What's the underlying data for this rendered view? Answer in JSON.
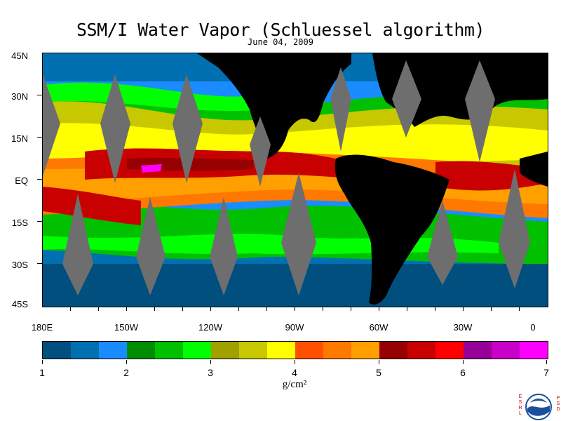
{
  "header": {
    "title": "SSM/I Water Vapor (Schluessel algorithm)",
    "date": "June 04, 2009"
  },
  "map": {
    "lat_labels": [
      "45N",
      "30N",
      "15N",
      "EQ",
      "15S",
      "30S",
      "45S"
    ],
    "lon_labels": [
      "180E",
      "150W",
      "120W",
      "90W",
      "60W",
      "30W",
      "0"
    ]
  },
  "colorbar": {
    "colors": [
      "#004f7f",
      "#0070b0",
      "#1a8cff",
      "#008c00",
      "#00c000",
      "#00ff00",
      "#a0a000",
      "#c8c800",
      "#ffff00",
      "#ff5000",
      "#ff7800",
      "#ffa000",
      "#960000",
      "#c80000",
      "#ff0000",
      "#960096",
      "#c800c8",
      "#ff00ff"
    ],
    "tick_labels": [
      "1",
      "2",
      "3",
      "4",
      "5",
      "6",
      "7"
    ],
    "units": "g/cm²"
  },
  "logo": {
    "left_text": "ESRL",
    "right_text": "PSD",
    "center_text": "NOAA"
  }
}
